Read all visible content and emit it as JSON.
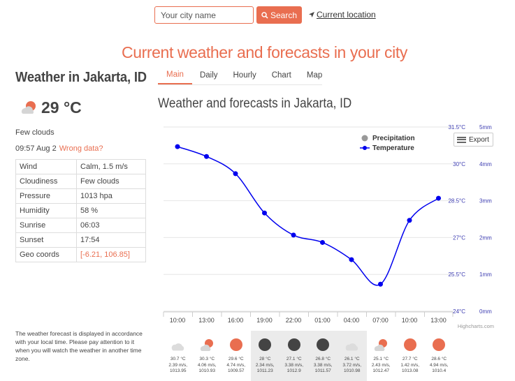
{
  "search": {
    "placeholder": "Your city name",
    "button_label": "Search",
    "location_label": "Current location"
  },
  "headline": "Current weather and forecasts in your city",
  "current": {
    "city_title": "Weather in Jakarta, ID",
    "temperature": "29 °C",
    "description": "Few clouds",
    "time": "09:57 Aug 2",
    "wrong_data_label": "Wrong data?",
    "details": [
      {
        "label": "Wind",
        "value": "Calm, 1.5 m/s"
      },
      {
        "label": "Cloudiness",
        "value": "Few clouds"
      },
      {
        "label": "Pressure",
        "value": "1013 hpa"
      },
      {
        "label": "Humidity",
        "value": "58 %"
      },
      {
        "label": "Sunrise",
        "value": "06:03"
      },
      {
        "label": "Sunset",
        "value": "17:54"
      },
      {
        "label": "Geo coords",
        "value": "[-6.21, 106.85]"
      }
    ]
  },
  "note": "The weather forecast is displayed in accordance with your local time. Please pay attention to it when you will watch the weather in another time zone.",
  "tabs": [
    "Main",
    "Daily",
    "Hourly",
    "Chart",
    "Map"
  ],
  "chart_title": "Weather and forecasts in Jakarta, ID",
  "export_label": "Export",
  "colors": {
    "accent": "#e96e50",
    "line": "#0000ee",
    "precip": "#999999",
    "night": "#ebebeb",
    "sun": "#e96e50",
    "night_icon": "#444444",
    "cloud": "#cccccc"
  },
  "chart_data": {
    "type": "line",
    "x": [
      "10:00",
      "13:00",
      "16:00",
      "19:00",
      "22:00",
      "01:00",
      "04:00",
      "07:00",
      "10:00",
      "13:00"
    ],
    "series": [
      {
        "name": "Temperature",
        "values": [
          30.7,
          30.3,
          29.6,
          28.0,
          27.1,
          26.8,
          26.1,
          25.1,
          27.7,
          28.6
        ]
      },
      {
        "name": "Precipitation",
        "values": [
          0,
          0,
          0,
          0,
          0,
          0,
          0,
          0,
          0,
          0
        ]
      }
    ],
    "y_left_ticks": [
      "24°C",
      "25.5°C",
      "27°C",
      "28.5°C",
      "30°C",
      "31.5°C"
    ],
    "y_right_ticks": [
      "0mm",
      "1mm",
      "2mm",
      "3mm",
      "4mm",
      "5mm"
    ],
    "ylim": [
      24,
      31.5
    ],
    "legend_position": "top-right",
    "credits": "Highcharts.com"
  },
  "forecast": [
    {
      "icon": "cloud",
      "night": false,
      "temp": "30.7 °C",
      "wind": "2.39 m/s,",
      "pressure": "1013.95"
    },
    {
      "icon": "few-clouds",
      "night": false,
      "temp": "30.3 °C",
      "wind": "4.06 m/s,",
      "pressure": "1010.93"
    },
    {
      "icon": "sun",
      "night": false,
      "temp": "29.6 °C",
      "wind": "4.74 m/s,",
      "pressure": "1009.57"
    },
    {
      "icon": "moon",
      "night": true,
      "temp": "28 °C",
      "wind": "2.34 m/s,",
      "pressure": "1011.23"
    },
    {
      "icon": "moon",
      "night": true,
      "temp": "27.1 °C",
      "wind": "3.38 m/s,",
      "pressure": "1012.9"
    },
    {
      "icon": "moon",
      "night": true,
      "temp": "26.8 °C",
      "wind": "3.38 m/s,",
      "pressure": "1011.57"
    },
    {
      "icon": "cloud",
      "night": true,
      "temp": "26.1 °C",
      "wind": "3.72 m/s,",
      "pressure": "1010.98"
    },
    {
      "icon": "few-clouds",
      "night": false,
      "temp": "25.1 °C",
      "wind": "2.43 m/s,",
      "pressure": "1012.47"
    },
    {
      "icon": "sun",
      "night": false,
      "temp": "27.7 °C",
      "wind": "1.42 m/s,",
      "pressure": "1013.08"
    },
    {
      "icon": "sun",
      "night": false,
      "temp": "28.6 °C",
      "wind": "4.94 m/s,",
      "pressure": "1010.4"
    }
  ]
}
